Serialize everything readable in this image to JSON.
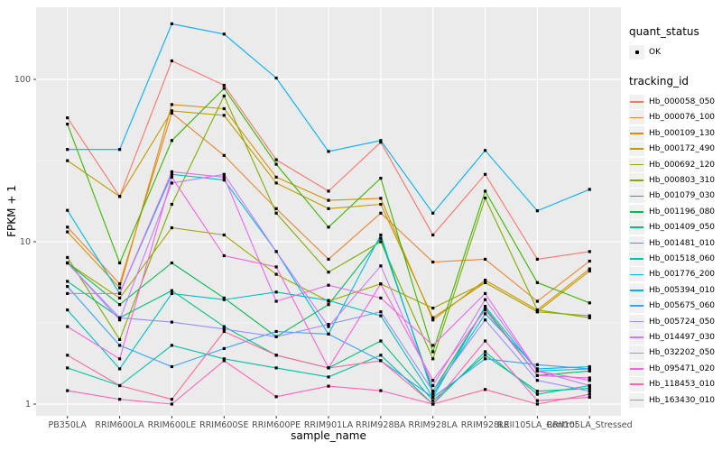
{
  "legend": {
    "quant_status_title": "quant_status",
    "ok_label": "OK",
    "tracking_id_title": "tracking_id"
  },
  "chart_data": {
    "type": "line",
    "title": "",
    "xlabel": "sample_name",
    "ylabel": "FPKM + 1",
    "y_scale": "log10",
    "ylim": [
      1,
      278
    ],
    "y_tick_labels": [
      "1",
      "10",
      "100"
    ],
    "y_tick_values": [
      1,
      10,
      100
    ],
    "y_minor_gridlines": [
      3.162,
      31.623
    ],
    "grid": true,
    "legend_position": "right",
    "panel_bg": "#EBEBEB",
    "grid_color": "#FFFFFF",
    "point_color": "#000000",
    "axis_text_color": "#4D4D4D",
    "categories": [
      "PB350LA",
      "RRIM600LA",
      "RRIM600LE",
      "RRIM600SE",
      "RRIM600PE",
      "RRIM901LA",
      "RRIM928BA",
      "RRIM928LA",
      "RRIM928LE",
      "RRII105LA_Control",
      "RRII105LA_Stressed"
    ],
    "series": [
      {
        "name": "Hb_000058_050",
        "color": "#F8766D",
        "values": [
          58,
          19,
          130,
          92,
          32,
          20.5,
          41,
          11,
          26,
          7.8,
          8.7
        ]
      },
      {
        "name": "Hb_000076_100",
        "color": "#EA8331",
        "values": [
          12.3,
          5.5,
          62,
          34,
          16,
          7.8,
          15,
          7.5,
          7.8,
          4.3,
          7.6
        ]
      },
      {
        "name": "Hb_000109_130",
        "color": "#D89000",
        "values": [
          11.5,
          5.2,
          70,
          66,
          25,
          18,
          18.5,
          3.3,
          5.8,
          3.8,
          6.8
        ]
      },
      {
        "name": "Hb_000172_490",
        "color": "#C09B00",
        "values": [
          31.6,
          19,
          64,
          60,
          23,
          16,
          17,
          3.4,
          5.6,
          3.7,
          6.6
        ]
      },
      {
        "name": "Hb_000692_120",
        "color": "#A3A500",
        "values": [
          7.4,
          4.5,
          12.2,
          11,
          6.3,
          4.3,
          5.5,
          3.9,
          5.6,
          3.7,
          3.5
        ]
      },
      {
        "name": "Hb_000803_310",
        "color": "#7CAE00",
        "values": [
          8,
          2.5,
          17,
          79,
          15,
          6.5,
          10,
          1.9,
          18.6,
          3.8,
          3.4
        ]
      },
      {
        "name": "Hb_001079_030",
        "color": "#39B600",
        "values": [
          53,
          7.4,
          42,
          88,
          30,
          12.3,
          24.6,
          2.1,
          20.5,
          5.6,
          4.2
        ]
      },
      {
        "name": "Hb_001196_080",
        "color": "#00BB4E",
        "values": [
          7.4,
          4.1,
          7.4,
          4.5,
          2.6,
          4.1,
          10.5,
          1.2,
          3.9,
          1.5,
          1.6
        ]
      },
      {
        "name": "Hb_001409_050",
        "color": "#00BF7D",
        "values": [
          5.7,
          3.4,
          5,
          3,
          2,
          1.67,
          2.45,
          1.05,
          2,
          1.2,
          1.25
        ]
      },
      {
        "name": "Hb_001481_010",
        "color": "#00C1A3",
        "values": [
          1.67,
          1.3,
          2.3,
          1.9,
          1.67,
          1.47,
          2,
          1,
          2.1,
          1.15,
          1.3
        ]
      },
      {
        "name": "Hb_001518_060",
        "color": "#00BFC4",
        "values": [
          3.8,
          1.65,
          4.8,
          4.4,
          4.9,
          4.35,
          3.5,
          1.1,
          4,
          1.6,
          1.65
        ]
      },
      {
        "name": "Hb_001776_200",
        "color": "#00BAE0",
        "values": [
          15.6,
          4.8,
          26,
          24,
          8.7,
          2.7,
          11,
          1.15,
          3.6,
          1.65,
          1.7
        ]
      },
      {
        "name": "Hb_005394_010",
        "color": "#00B0F6",
        "values": [
          37,
          37,
          220,
          190,
          102,
          36,
          42,
          15,
          36.5,
          15.5,
          21
        ]
      },
      {
        "name": "Hb_005675_060",
        "color": "#35A2FF",
        "values": [
          5.3,
          2.3,
          1.7,
          2.2,
          2.8,
          2.7,
          1.85,
          1.1,
          1.9,
          1.75,
          1.65
        ]
      },
      {
        "name": "Hb_005724_050",
        "color": "#9590FF",
        "values": [
          7.4,
          3.4,
          3.2,
          2.9,
          2.6,
          3.1,
          3.7,
          1.2,
          3.3,
          1.4,
          1.2
        ]
      },
      {
        "name": "Hb_014497_030",
        "color": "#C77CFF",
        "values": [
          7.4,
          3.3,
          23,
          26,
          8.7,
          3,
          7.1,
          1.3,
          4.4,
          1.6,
          1.3
        ]
      },
      {
        "name": "Hb_032202_050",
        "color": "#E76BF3",
        "values": [
          4.8,
          4.8,
          27,
          25,
          4.3,
          5.4,
          4.5,
          2.3,
          4.8,
          1.6,
          1.4
        ]
      },
      {
        "name": "Hb_095471_020",
        "color": "#FA62DB",
        "values": [
          3,
          1.9,
          25,
          8.2,
          7,
          1.67,
          5.5,
          1.4,
          3.8,
          1.5,
          1.45
        ]
      },
      {
        "name": "Hb_118453_010",
        "color": "#FF62BC",
        "values": [
          1.21,
          1.07,
          1,
          1.85,
          1.11,
          1.29,
          1.21,
          1,
          2.45,
          1.05,
          1.1
        ]
      },
      {
        "name": "Hb_163430_010",
        "color": "#FF6A98",
        "values": [
          2,
          1.3,
          1.07,
          2.8,
          2,
          1.67,
          1.85,
          1,
          1.23,
          1,
          1.15
        ]
      }
    ]
  }
}
